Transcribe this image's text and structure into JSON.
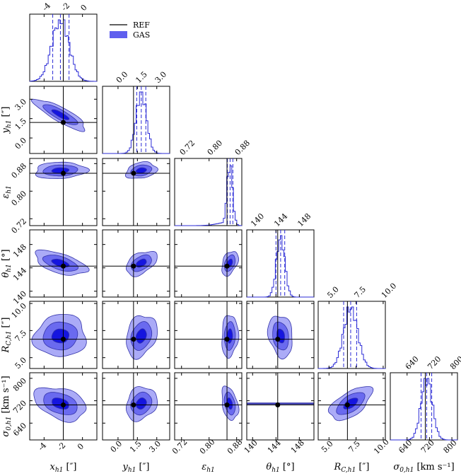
{
  "colors": {
    "hist": "#2b2bd6",
    "contour_outer": "#a6a6f7",
    "contour_mid": "#6666ee",
    "contour_inner": "#1111dd",
    "reference": "#000000"
  },
  "legend": {
    "ref_label": "REF",
    "gas_label": "GAS"
  },
  "chart_data": {
    "type": "corner",
    "parameters": [
      {
        "name": "x_h1",
        "label": "x_h1 [″]",
        "range": [
          -5.5,
          1.5
        ],
        "ticks": [
          "-4",
          "-2",
          "0"
        ],
        "tick_values": [
          -4,
          -2,
          0
        ],
        "ref": -2.0,
        "mean": -2.3,
        "sd": 0.9,
        "quantiles": [
          -3.1,
          -2.3,
          -1.4
        ]
      },
      {
        "name": "y_h1",
        "label": "y_h1 [″]",
        "range": [
          -1.2,
          4.0
        ],
        "ticks": [
          "0.0",
          "1.5",
          "3.0"
        ],
        "tick_values": [
          0.0,
          1.5,
          3.0
        ],
        "ref": 1.2,
        "mean": 1.8,
        "sd": 0.4,
        "quantiles": [
          1.45,
          1.8,
          2.15
        ]
      },
      {
        "name": "eps_h1",
        "label": "ε_h1",
        "range": [
          0.7,
          0.895
        ],
        "ticks": [
          "0.72",
          "0.80",
          "0.88"
        ],
        "tick_values": [
          0.72,
          0.8,
          0.88
        ],
        "ref": 0.852,
        "mean": 0.86,
        "sd": 0.008,
        "quantiles": [
          0.853,
          0.861,
          0.869
        ]
      },
      {
        "name": "theta_h1",
        "label": "θ_h1 [°]",
        "range": [
          139.0,
          150.5
        ],
        "ticks": [
          "140",
          "144",
          "148"
        ],
        "tick_values": [
          140,
          144,
          148
        ],
        "ref": 144.3,
        "mean": 144.8,
        "sd": 0.7,
        "quantiles": [
          144.0,
          144.8,
          145.5
        ]
      },
      {
        "name": "R_C_h1",
        "label": "R_C,h1 [″]",
        "range": [
          4.0,
          10.2
        ],
        "ticks": [
          "5.0",
          "7.5",
          "10.0"
        ],
        "tick_values": [
          5.0,
          7.5,
          10.0
        ],
        "ref": 6.7,
        "mean": 7.0,
        "sd": 0.65,
        "quantiles": [
          6.35,
          7.0,
          7.55
        ]
      },
      {
        "name": "sigma_0_h1",
        "label": "σ_0,h1 [km s⁻¹]",
        "range": [
          580,
          820
        ],
        "ticks": [
          "640",
          "720",
          "800"
        ],
        "tick_values": [
          640,
          720,
          800
        ],
        "ref": 705,
        "mean": 710,
        "sd": 20,
        "quantiles": [
          690,
          710,
          728
        ]
      }
    ],
    "correlations": {
      "1_0": -0.85,
      "2_0": 0.1,
      "2_1": 0.25,
      "3_0": -0.55,
      "3_1": 0.45,
      "3_2": 0.4,
      "4_0": 0.05,
      "4_1": 0.25,
      "4_2": 0.1,
      "4_3": -0.2,
      "5_0": -0.35,
      "5_1": 0.2,
      "5_2": -0.35,
      "5_3": 0.0,
      "5_4": 0.6
    },
    "axis_labels": {
      "x_h1": [
        "x",
        "h1",
        "[″]"
      ],
      "y_h1": [
        "y",
        "h1",
        "[″]"
      ],
      "eps_h1": [
        "ε",
        "h1",
        ""
      ],
      "theta_h1": [
        "θ",
        "h1",
        "[°]"
      ],
      "R_C_h1": [
        "R",
        "C,h1",
        "[″]"
      ],
      "sigma_0_h1": [
        "σ",
        "0,h1",
        "[km s⁻¹]"
      ]
    }
  }
}
